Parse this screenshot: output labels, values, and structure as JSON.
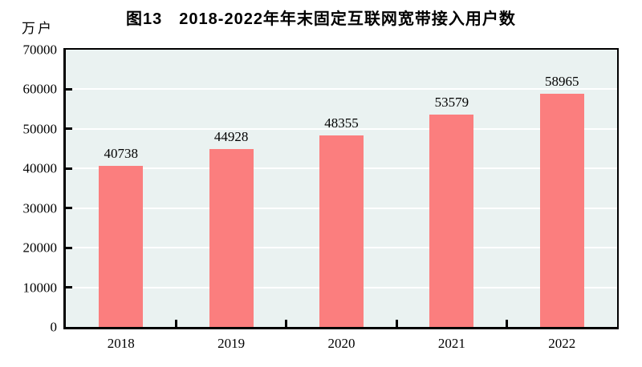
{
  "title": "图13　2018-2022年年末固定互联网宽带接入用户数",
  "chart_data": {
    "type": "bar",
    "title": "图13　2018-2022年年末固定互联网宽带接入用户数",
    "ylabel": "万户",
    "xlabel": "",
    "categories": [
      "2018",
      "2019",
      "2020",
      "2021",
      "2022"
    ],
    "values": [
      40738,
      44928,
      48355,
      53579,
      58965
    ],
    "data_labels": [
      "40738",
      "44928",
      "48355",
      "53579",
      "58965"
    ],
    "ylim": [
      0,
      70000
    ],
    "y_ticks": [
      0,
      10000,
      20000,
      30000,
      40000,
      50000,
      60000,
      70000
    ],
    "grid": "horizontal white gridlines on",
    "legend": "none",
    "bar_color": "#FB7E7E",
    "plot_bg_color": "#EAF2F1",
    "axis_color": "#000000",
    "text_color": "#000000"
  }
}
